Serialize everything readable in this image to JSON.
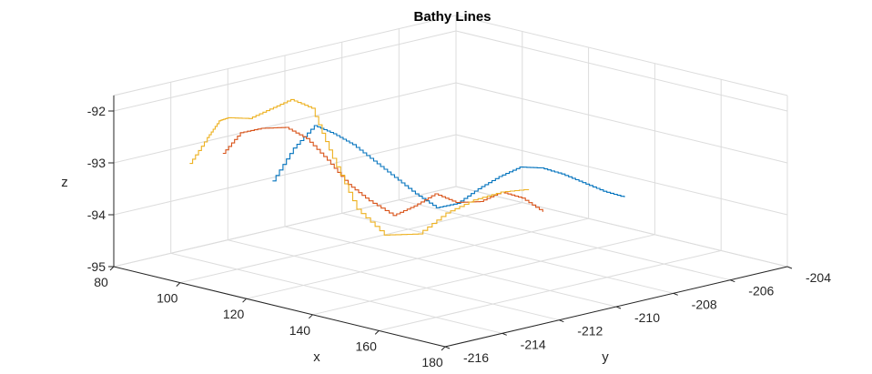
{
  "chart_data": {
    "type": "line",
    "title": "Bathy Lines",
    "xlabel": "x",
    "ylabel": "y",
    "zlabel": "z",
    "xlim": [
      80,
      180
    ],
    "ylim": [
      -216,
      -204
    ],
    "zlim": [
      -95,
      -91.7
    ],
    "x_ticks": [
      80,
      100,
      120,
      140,
      160,
      180
    ],
    "x_tick_labels": [
      "80",
      "100",
      "120",
      "140",
      "160",
      "180"
    ],
    "y_ticks": [
      -216,
      -214,
      -212,
      -210,
      -208,
      -206,
      -204
    ],
    "y_tick_labels": [
      "-216",
      "-214",
      "-212",
      "-210",
      "-208",
      "-206",
      "-204"
    ],
    "z_ticks": [
      -95,
      -94,
      -93,
      -92
    ],
    "z_tick_labels": [
      "-95",
      "-94",
      "-93",
      "-92"
    ],
    "grid": true,
    "series": [
      {
        "color": "#0072BD",
        "points": [
          [
            115.0,
            -214.5,
            -93.0
          ],
          [
            117.0,
            -214.0,
            -92.4
          ],
          [
            119.0,
            -213.5,
            -92.0
          ],
          [
            120.5,
            -213.0,
            -92.2
          ],
          [
            122.0,
            -212.5,
            -92.45
          ],
          [
            124.0,
            -212.0,
            -92.8
          ],
          [
            126.0,
            -211.5,
            -93.15
          ],
          [
            128.0,
            -211.0,
            -93.5
          ],
          [
            130.0,
            -210.5,
            -93.8
          ],
          [
            132.0,
            -210.0,
            -93.75
          ],
          [
            134.0,
            -209.5,
            -93.5
          ],
          [
            136.0,
            -209.0,
            -93.3
          ],
          [
            138.0,
            -208.5,
            -93.15
          ],
          [
            140.0,
            -208.0,
            -93.2
          ],
          [
            142.0,
            -207.5,
            -93.35
          ],
          [
            144.0,
            -207.0,
            -93.55
          ],
          [
            146.0,
            -206.5,
            -93.75
          ],
          [
            148.0,
            -206.0,
            -93.9
          ]
        ]
      },
      {
        "color": "#D95319",
        "points": [
          [
            100.0,
            -214.5,
            -92.7
          ],
          [
            101.0,
            -214.0,
            -92.35
          ],
          [
            103.0,
            -213.5,
            -92.3
          ],
          [
            106.0,
            -213.0,
            -92.3
          ],
          [
            108.0,
            -212.5,
            -92.55
          ],
          [
            110.0,
            -212.0,
            -93.0
          ],
          [
            112.0,
            -211.5,
            -93.5
          ],
          [
            114.0,
            -211.0,
            -93.85
          ],
          [
            117.0,
            -210.5,
            -94.15
          ],
          [
            119.0,
            -210.0,
            -94.0
          ],
          [
            121.0,
            -209.5,
            -93.8
          ],
          [
            123.0,
            -209.0,
            -94.0
          ],
          [
            126.0,
            -208.5,
            -94.0
          ],
          [
            128.0,
            -208.0,
            -93.85
          ],
          [
            130.0,
            -207.5,
            -94.0
          ],
          [
            132.0,
            -207.0,
            -94.3
          ]
        ]
      },
      {
        "color": "#EDB120",
        "points": [
          [
            90.0,
            -214.5,
            -93.05
          ],
          [
            91.0,
            -214.0,
            -92.6
          ],
          [
            92.0,
            -213.7,
            -92.3
          ],
          [
            93.0,
            -213.5,
            -92.25
          ],
          [
            95.0,
            -213.0,
            -92.3
          ],
          [
            97.0,
            -212.5,
            -92.15
          ],
          [
            99.0,
            -212.0,
            -92.0
          ],
          [
            101.0,
            -211.5,
            -92.2
          ],
          [
            103.0,
            -211.0,
            -93.2
          ],
          [
            106.0,
            -210.5,
            -94.2
          ],
          [
            110.0,
            -210.0,
            -94.7
          ],
          [
            116.0,
            -209.5,
            -94.65
          ],
          [
            120.0,
            -209.0,
            -94.25
          ],
          [
            124.0,
            -208.5,
            -94.0
          ],
          [
            128.0,
            -208.0,
            -93.85
          ],
          [
            132.0,
            -207.5,
            -93.8
          ]
        ]
      }
    ]
  }
}
